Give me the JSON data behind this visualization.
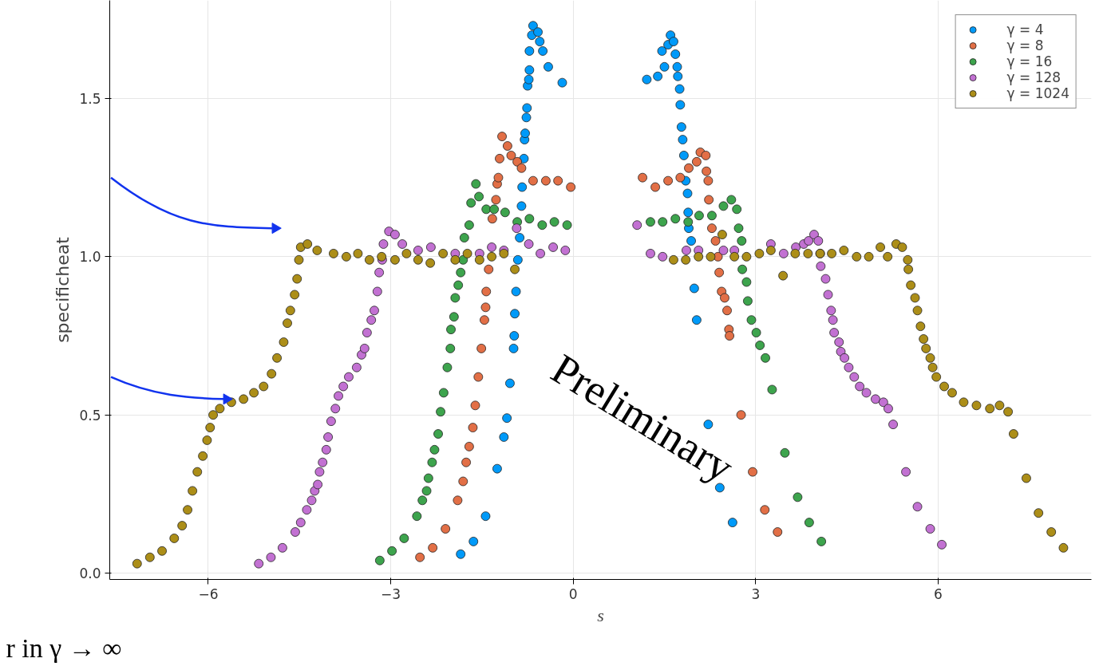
{
  "chart_data": {
    "type": "scatter",
    "xlabel": "s",
    "ylabel": "specificheat",
    "xlim": [
      -7.62,
      8.52
    ],
    "ylim": [
      -0.02,
      1.81
    ],
    "xticks": [
      {
        "value": -6,
        "label": "−6"
      },
      {
        "value": -3,
        "label": "−3"
      },
      0,
      3,
      6
    ],
    "yticks": [
      {
        "value": 0,
        "label": "0.0"
      },
      0.5,
      {
        "value": 1,
        "label": "1.0"
      },
      1.5
    ],
    "grid": true,
    "legend": "top right",
    "marker": "circle",
    "annotations": [
      "Preliminary",
      "r in γ → ∞"
    ],
    "series": [
      {
        "name": "γ = 4",
        "color": "#009af9",
        "x": [
          -1.85,
          -1.64,
          -1.44,
          -1.25,
          -1.14,
          -1.09,
          -1.04,
          -0.98,
          -0.97,
          -0.96,
          -0.94,
          -0.91,
          -0.88,
          -0.85,
          -0.84,
          -0.81,
          -0.8,
          -0.79,
          -0.77,
          -0.76,
          -0.75,
          -0.73,
          -0.72,
          -0.72,
          -0.68,
          -0.66,
          -0.58,
          -0.55,
          -0.5,
          -0.41,
          -0.18,
          1.21,
          1.39,
          1.5,
          1.46,
          1.56,
          1.6,
          1.65,
          1.68,
          1.71,
          1.72,
          1.75,
          1.76,
          1.78,
          1.8,
          1.82,
          1.85,
          1.88,
          1.89,
          1.9,
          1.94,
          1.99,
          2.03,
          2.22,
          2.41,
          2.62
        ],
        "values": [
          0.06,
          0.1,
          0.18,
          0.33,
          0.43,
          0.49,
          0.6,
          0.71,
          0.75,
          0.82,
          0.89,
          0.99,
          1.06,
          1.16,
          1.22,
          1.31,
          1.37,
          1.39,
          1.44,
          1.47,
          1.54,
          1.56,
          1.59,
          1.65,
          1.7,
          1.73,
          1.71,
          1.68,
          1.65,
          1.6,
          1.55,
          1.56,
          1.57,
          1.6,
          1.65,
          1.67,
          1.7,
          1.68,
          1.64,
          1.6,
          1.57,
          1.53,
          1.48,
          1.41,
          1.37,
          1.32,
          1.24,
          1.2,
          1.14,
          1.09,
          1.05,
          0.9,
          0.8,
          0.47,
          0.27,
          0.16
        ]
      },
      {
        "name": "γ = 8",
        "color": "#e26f46",
        "x": [
          -2.52,
          -2.31,
          -2.1,
          -1.9,
          -1.81,
          -1.76,
          -1.71,
          -1.65,
          -1.61,
          -1.56,
          -1.51,
          -1.46,
          -1.44,
          -1.43,
          -1.39,
          -1.34,
          -1.33,
          -1.27,
          -1.25,
          -1.23,
          -1.21,
          -1.17,
          -1.08,
          -1.02,
          -0.92,
          -0.85,
          -0.66,
          -0.45,
          -0.25,
          -0.04,
          1.14,
          1.35,
          1.56,
          1.76,
          1.9,
          2.03,
          2.09,
          2.18,
          2.19,
          2.22,
          2.23,
          2.28,
          2.34,
          2.38,
          2.4,
          2.44,
          2.49,
          2.53,
          2.56,
          2.57,
          2.76,
          2.95,
          3.15,
          3.36
        ],
        "values": [
          0.05,
          0.08,
          0.14,
          0.23,
          0.29,
          0.35,
          0.4,
          0.46,
          0.53,
          0.62,
          0.71,
          0.8,
          0.84,
          0.89,
          0.96,
          null,
          1.12,
          1.18,
          1.23,
          1.25,
          1.31,
          1.38,
          1.35,
          1.32,
          1.3,
          1.28,
          1.24,
          1.24,
          1.24,
          1.22,
          1.25,
          1.22,
          1.24,
          1.25,
          1.28,
          1.3,
          1.33,
          1.32,
          1.27,
          1.24,
          1.18,
          1.09,
          1.05,
          1.0,
          0.95,
          0.89,
          0.87,
          0.83,
          0.77,
          0.75,
          0.5,
          0.32,
          0.2,
          0.13
        ]
      },
      {
        "name": "γ = 16",
        "color": "#3da44d",
        "x": [
          -3.18,
          -2.98,
          -2.78,
          -2.57,
          -2.48,
          -2.41,
          -2.38,
          -2.32,
          -2.28,
          -2.22,
          -2.18,
          -2.13,
          -2.07,
          -2.02,
          -2.01,
          -1.96,
          -1.94,
          -1.89,
          -1.85,
          -1.81,
          -1.79,
          -1.71,
          -1.68,
          -1.6,
          -1.55,
          -1.43,
          -1.3,
          -1.12,
          -0.92,
          -0.72,
          -0.51,
          -0.31,
          -0.1,
          1.27,
          1.47,
          1.68,
          1.89,
          2.07,
          2.28,
          2.47,
          2.6,
          2.69,
          2.72,
          2.77,
          2.78,
          2.85,
          2.87,
          2.93,
          3.01,
          3.07,
          3.16,
          3.27,
          3.48,
          3.69,
          3.88,
          4.08
        ],
        "values": [
          0.04,
          0.07,
          0.11,
          0.18,
          0.23,
          0.26,
          0.3,
          0.35,
          0.39,
          0.44,
          0.51,
          0.57,
          0.65,
          0.71,
          0.77,
          0.81,
          0.87,
          0.91,
          0.95,
          0.99,
          1.06,
          1.1,
          1.17,
          1.23,
          1.19,
          1.15,
          1.15,
          1.14,
          1.11,
          1.12,
          1.1,
          1.11,
          1.1,
          1.11,
          1.11,
          1.12,
          1.11,
          1.13,
          1.13,
          1.16,
          1.18,
          1.15,
          1.09,
          1.05,
          0.96,
          0.92,
          0.86,
          0.8,
          0.76,
          0.72,
          0.68,
          0.58,
          0.38,
          0.24,
          0.16,
          0.1
        ]
      },
      {
        "name": "γ = 128",
        "color": "#c271d2",
        "x": [
          -5.17,
          -4.97,
          -4.78,
          -4.57,
          -4.48,
          -4.38,
          -4.3,
          -4.25,
          -4.2,
          -4.17,
          -4.12,
          -4.06,
          -4.03,
          -3.98,
          -3.91,
          -3.86,
          -3.78,
          -3.69,
          -3.56,
          -3.48,
          -3.43,
          -3.39,
          -3.32,
          -3.27,
          -3.22,
          -3.19,
          -3.14,
          -3.12,
          -3.03,
          -2.93,
          -2.81,
          -2.55,
          -2.34,
          -1.94,
          -1.54,
          -1.34,
          -1.14,
          -0.93,
          -0.73,
          -0.54,
          -0.33,
          -0.13,
          1.05,
          1.27,
          1.47,
          1.86,
          2.06,
          2.47,
          2.65,
          3.25,
          3.46,
          3.66,
          3.79,
          3.87,
          3.96,
          4.03,
          4.06,
          4.07,
          4.15,
          4.19,
          4.24,
          4.27,
          4.29,
          4.37,
          4.4,
          4.46,
          4.53,
          4.62,
          4.71,
          4.82,
          4.97,
          5.1,
          5.18,
          5.26,
          5.47,
          5.66,
          5.87,
          6.06
        ],
        "values": [
          0.03,
          0.05,
          0.08,
          0.13,
          0.16,
          0.2,
          0.23,
          0.26,
          0.28,
          0.32,
          0.35,
          0.39,
          0.43,
          0.48,
          0.52,
          0.56,
          0.59,
          0.62,
          0.65,
          0.69,
          0.71,
          0.76,
          0.8,
          0.83,
          0.89,
          0.95,
          0.99,
          1.04,
          1.08,
          1.07,
          1.04,
          1.02,
          1.03,
          1.01,
          1.01,
          1.03,
          1.02,
          1.09,
          1.04,
          1.01,
          1.03,
          1.02,
          1.1,
          1.01,
          1.0,
          1.02,
          1.02,
          1.02,
          1.02,
          1.04,
          1.01,
          1.03,
          1.04,
          1.05,
          1.07,
          1.05,
          1.01,
          0.97,
          0.93,
          0.88,
          0.83,
          0.8,
          0.76,
          0.73,
          0.7,
          0.68,
          0.65,
          0.62,
          0.59,
          0.57,
          0.55,
          0.54,
          0.52,
          0.47,
          0.32,
          0.21,
          0.14,
          0.09
        ]
      },
      {
        "name": "γ = 1024",
        "color": "#ac8e18",
        "x": [
          -7.17,
          -6.96,
          -6.76,
          -6.56,
          -6.43,
          -6.34,
          -6.26,
          -6.18,
          -6.09,
          -6.02,
          -5.97,
          -5.92,
          -5.81,
          -5.62,
          -5.42,
          -5.25,
          -5.09,
          -4.96,
          -4.87,
          -4.76,
          -4.7,
          -4.65,
          -4.58,
          -4.54,
          -4.51,
          -4.48,
          -4.37,
          -4.21,
          -3.94,
          -3.73,
          -3.54,
          -3.35,
          -3.15,
          -2.93,
          -2.74,
          -2.55,
          -2.35,
          -2.14,
          -1.94,
          -1.74,
          -1.54,
          -1.34,
          -1.14,
          -0.96,
          1.65,
          1.85,
          2.06,
          2.26,
          2.45,
          2.65,
          2.85,
          3.06,
          3.25,
          3.45,
          3.65,
          3.86,
          4.06,
          4.25,
          4.45,
          4.66,
          4.86,
          5.05,
          5.17,
          5.31,
          5.41,
          5.5,
          5.51,
          5.55,
          5.62,
          5.66,
          5.71,
          5.76,
          5.8,
          5.87,
          5.91,
          5.97,
          6.1,
          6.23,
          6.42,
          6.63,
          6.85,
          7.01,
          7.15,
          7.24,
          7.45,
          7.65,
          7.86,
          8.06
        ],
        "values": [
          0.03,
          0.05,
          0.07,
          0.11,
          0.15,
          0.2,
          0.26,
          0.32,
          0.37,
          0.42,
          0.46,
          0.5,
          0.52,
          0.54,
          0.55,
          0.57,
          0.59,
          0.63,
          0.68,
          0.73,
          0.79,
          0.83,
          0.88,
          0.93,
          0.99,
          1.03,
          1.04,
          1.02,
          1.01,
          1.0,
          1.01,
          0.99,
          1.0,
          0.99,
          1.01,
          0.99,
          0.98,
          1.01,
          0.99,
          1.01,
          0.99,
          1.0,
          1.01,
          0.96,
          0.99,
          0.99,
          1.0,
          1.0,
          1.07,
          1.0,
          1.0,
          1.01,
          1.02,
          0.94,
          1.01,
          1.01,
          1.01,
          1.01,
          1.02,
          1.0,
          1.0,
          1.03,
          1.0,
          1.04,
          1.03,
          0.99,
          0.96,
          0.91,
          0.87,
          0.83,
          0.78,
          0.74,
          0.71,
          0.68,
          0.65,
          0.62,
          0.59,
          0.57,
          0.54,
          0.53,
          0.52,
          0.53,
          0.51,
          0.44,
          0.3,
          0.19,
          0.13,
          0.08
        ]
      }
    ]
  }
}
